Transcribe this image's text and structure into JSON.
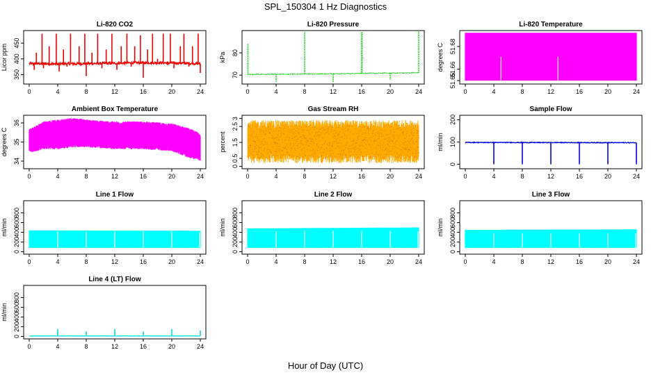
{
  "figure": {
    "title": "SPL_150304  1 Hz Diagnostics",
    "xlabel": "Hour of Day (UTC)"
  },
  "chart_data": [
    {
      "type": "line",
      "title": "Li-820 CO2",
      "ylabel": "Licor ppm",
      "color": "#ee0000",
      "style": "line",
      "xlim": [
        0,
        24
      ],
      "ylim": [
        320,
        490
      ],
      "yticks": [
        350,
        400,
        450
      ],
      "xticks": [
        0,
        4,
        8,
        12,
        16,
        20,
        24
      ],
      "baseline": [
        [
          0,
          385
        ],
        [
          4,
          384
        ],
        [
          8,
          385
        ],
        [
          12,
          386
        ],
        [
          16,
          388
        ],
        [
          20,
          387
        ],
        [
          24,
          385
        ]
      ],
      "noise": 4,
      "spikes": [
        [
          0.7,
          365
        ],
        [
          1.0,
          420
        ],
        [
          1.8,
          480
        ],
        [
          2.0,
          370
        ],
        [
          2.8,
          440
        ],
        [
          3.2,
          380
        ],
        [
          3.8,
          480
        ],
        [
          4.2,
          360
        ],
        [
          4.8,
          430
        ],
        [
          5.3,
          375
        ],
        [
          5.8,
          480
        ],
        [
          6.5,
          380
        ],
        [
          7.0,
          440
        ],
        [
          7.8,
          480
        ],
        [
          8.0,
          345
        ],
        [
          8.8,
          420
        ],
        [
          9.6,
          480
        ],
        [
          10.2,
          370
        ],
        [
          10.8,
          430
        ],
        [
          11.6,
          480
        ],
        [
          12.3,
          365
        ],
        [
          12.9,
          440
        ],
        [
          13.7,
          480
        ],
        [
          14.3,
          375
        ],
        [
          14.8,
          440
        ],
        [
          15.6,
          475
        ],
        [
          16.0,
          340
        ],
        [
          16.6,
          430
        ],
        [
          17.3,
          480
        ],
        [
          18.0,
          400
        ],
        [
          18.8,
          480
        ],
        [
          19.4,
          380
        ],
        [
          19.8,
          480
        ],
        [
          20.3,
          370
        ],
        [
          21.2,
          440
        ],
        [
          21.7,
          480
        ],
        [
          22.4,
          375
        ],
        [
          22.9,
          440
        ],
        [
          23.7,
          480
        ],
        [
          24.0,
          355
        ]
      ]
    },
    {
      "type": "line",
      "title": "Li-820 Pressure",
      "ylabel": "kPa",
      "color": "#00cc00",
      "style": "dotted",
      "xlim": [
        0,
        24
      ],
      "ylim": [
        66,
        90
      ],
      "yticks": [
        70,
        80
      ],
      "xticks": [
        0,
        4,
        8,
        12,
        16,
        20,
        24
      ],
      "baseline": [
        [
          0,
          70.3
        ],
        [
          4,
          70.4
        ],
        [
          8,
          70.5
        ],
        [
          12,
          70.6
        ],
        [
          16,
          70.8
        ],
        [
          20,
          70.9
        ],
        [
          24,
          71.1
        ]
      ],
      "noise": 0.15,
      "spikes": [
        [
          0.05,
          84
        ],
        [
          4.0,
          67
        ],
        [
          8.0,
          89.5
        ],
        [
          12.0,
          67
        ],
        [
          16.0,
          89.5
        ],
        [
          16.05,
          89.5
        ],
        [
          20.0,
          68
        ],
        [
          24.0,
          89.5
        ]
      ]
    },
    {
      "type": "area",
      "title": "Li-820 Temperature",
      "ylabel": "degrees C",
      "color": "#ff00ff",
      "style": "fill",
      "xlim": [
        0,
        24
      ],
      "ylim": [
        51.647,
        51.694
      ],
      "yticks": [
        51.65,
        51.66,
        51.68
      ],
      "xticks": [
        0,
        4,
        8,
        12,
        16,
        20,
        24
      ],
      "band": [
        [
          0,
          51.65,
          51.692
        ],
        [
          24,
          51.65,
          51.692
        ]
      ],
      "gaps": [
        [
          5.0,
          51.65,
          51.671
        ],
        [
          13.0,
          51.65,
          51.671
        ]
      ]
    },
    {
      "type": "area",
      "title": "Ambient Box Temperature",
      "ylabel": "degrees C",
      "color": "#ff00ff",
      "style": "fill",
      "xlim": [
        0,
        24
      ],
      "ylim": [
        33.6,
        36.4
      ],
      "yticks": [
        34.0,
        35.0,
        36.0
      ],
      "xticks": [
        0,
        4,
        8,
        12,
        16,
        20,
        24
      ],
      "band": [
        [
          0,
          34.6,
          35.5
        ],
        [
          2,
          34.8,
          35.9
        ],
        [
          4,
          34.8,
          36.0
        ],
        [
          6,
          34.9,
          36.1
        ],
        [
          8,
          34.9,
          36.0
        ],
        [
          12,
          34.8,
          35.9
        ],
        [
          16,
          34.8,
          35.9
        ],
        [
          20,
          34.7,
          35.8
        ],
        [
          22,
          34.4,
          35.6
        ],
        [
          24,
          34.2,
          35.3
        ]
      ],
      "noise": 0.18
    },
    {
      "type": "area",
      "title": "Gas Stream RH",
      "ylabel": "percent",
      "color": "#ffaa00",
      "style": "noise",
      "xlim": [
        0,
        24
      ],
      "ylim": [
        -0.15,
        3.2
      ],
      "yticks": [
        0.0,
        0.5,
        1.5,
        2.5,
        3.0
      ],
      "xticks": [
        0,
        4,
        8,
        12,
        16,
        20,
        24
      ],
      "band": [
        [
          0,
          0.8,
          2.3
        ],
        [
          24,
          0.8,
          2.3
        ]
      ],
      "noise": 0.6
    },
    {
      "type": "line",
      "title": "Sample Flow",
      "ylabel": "ml/min",
      "color": "#0000dd",
      "style": "line",
      "xlim": [
        0,
        24
      ],
      "ylim": [
        -20,
        220
      ],
      "yticks": [
        0,
        100,
        200
      ],
      "xticks": [
        0,
        4,
        8,
        12,
        16,
        20,
        24
      ],
      "baseline": [
        [
          0,
          98
        ],
        [
          24,
          97
        ]
      ],
      "noise": 1.5,
      "spikes": [
        [
          4.0,
          0
        ],
        [
          8.0,
          0
        ],
        [
          12.0,
          0
        ],
        [
          16.0,
          0
        ],
        [
          20.0,
          0
        ],
        [
          24.0,
          0
        ]
      ]
    },
    {
      "type": "area",
      "title": "Line 1 Flow",
      "ylabel": "ml/min",
      "color": "#00ffff",
      "style": "fill",
      "xlim": [
        0,
        24
      ],
      "ylim": [
        -50,
        1050
      ],
      "yticks": [
        0,
        200,
        400,
        600,
        800
      ],
      "xticks": [
        0,
        4,
        8,
        12,
        16,
        20,
        24
      ],
      "band": [
        [
          0,
          80,
          440
        ],
        [
          24,
          80,
          430
        ]
      ],
      "gaps": [
        [
          4.0,
          80,
          420
        ],
        [
          8.0,
          80,
          420
        ],
        [
          12.0,
          80,
          420
        ],
        [
          16.0,
          80,
          420
        ],
        [
          20.0,
          80,
          420
        ],
        [
          23.9,
          80,
          400
        ]
      ]
    },
    {
      "type": "area",
      "title": "Line 2 Flow",
      "ylabel": "ml/min",
      "color": "#00ffff",
      "style": "fill",
      "xlim": [
        0,
        24
      ],
      "ylim": [
        -50,
        1050
      ],
      "yticks": [
        0,
        200,
        400,
        600,
        800
      ],
      "xticks": [
        0,
        4,
        8,
        12,
        16,
        20,
        24
      ],
      "band": [
        [
          0,
          80,
          480
        ],
        [
          12,
          80,
          490
        ],
        [
          24,
          80,
          500
        ]
      ],
      "gaps": [
        [
          4.0,
          80,
          420
        ],
        [
          8.0,
          80,
          430
        ],
        [
          12.0,
          80,
          430
        ],
        [
          16.0,
          80,
          430
        ],
        [
          20.0,
          80,
          430
        ],
        [
          23.9,
          80,
          420
        ]
      ]
    },
    {
      "type": "area",
      "title": "Line 3 Flow",
      "ylabel": "ml/min",
      "color": "#00ffff",
      "style": "fill",
      "xlim": [
        0,
        24
      ],
      "ylim": [
        -50,
        1050
      ],
      "yticks": [
        0,
        200,
        400,
        600,
        800
      ],
      "xticks": [
        0,
        4,
        8,
        12,
        16,
        20,
        24
      ],
      "band": [
        [
          0,
          80,
          450
        ],
        [
          24,
          80,
          460
        ]
      ],
      "gaps": [
        [
          4.0,
          20,
          380
        ],
        [
          8.0,
          80,
          380
        ],
        [
          12.0,
          20,
          380
        ],
        [
          16.0,
          80,
          380
        ],
        [
          20.0,
          20,
          380
        ],
        [
          23.9,
          80,
          380
        ]
      ]
    },
    {
      "type": "line",
      "title": "Line 4 (LT) Flow",
      "ylabel": "ml/min",
      "color": "#00dddd",
      "style": "line",
      "xlim": [
        0,
        24
      ],
      "ylim": [
        -50,
        1050
      ],
      "yticks": [
        0,
        200,
        400,
        600,
        800
      ],
      "xticks": [
        0,
        4,
        8,
        12,
        16,
        20,
        24
      ],
      "baseline": [
        [
          0,
          10
        ],
        [
          24,
          10
        ]
      ],
      "noise": 2,
      "spikes": [
        [
          4.0,
          150
        ],
        [
          8.0,
          100
        ],
        [
          12.0,
          150
        ],
        [
          16.0,
          100
        ],
        [
          20.0,
          150
        ],
        [
          24.0,
          120
        ]
      ]
    }
  ]
}
